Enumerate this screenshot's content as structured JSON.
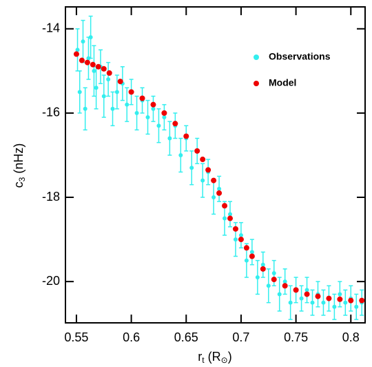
{
  "chart_data": {
    "type": "scatter",
    "xlabel": [
      "r",
      "t",
      " (R",
      "⊙",
      ")"
    ],
    "ylabel": [
      "c",
      "3",
      " (nHz)"
    ],
    "xlim": [
      0.54,
      0.813
    ],
    "ylim": [
      -20.98,
      -13.48
    ],
    "xticks": [
      0.55,
      0.6,
      0.65,
      0.7,
      0.75,
      0.8
    ],
    "yticks": [
      -20,
      -18,
      -16,
      -14
    ],
    "series": [
      {
        "name": "Observations",
        "color": "#33eeee",
        "x": [
          0.551,
          0.553,
          0.556,
          0.558,
          0.561,
          0.563,
          0.566,
          0.568,
          0.572,
          0.575,
          0.579,
          0.583,
          0.587,
          0.592,
          0.596,
          0.6,
          0.605,
          0.61,
          0.615,
          0.62,
          0.625,
          0.63,
          0.635,
          0.64,
          0.645,
          0.65,
          0.655,
          0.66,
          0.665,
          0.67,
          0.675,
          0.68,
          0.685,
          0.69,
          0.695,
          0.7,
          0.705,
          0.71,
          0.715,
          0.72,
          0.725,
          0.73,
          0.735,
          0.74,
          0.745,
          0.75,
          0.755,
          0.76,
          0.765,
          0.77,
          0.775,
          0.78,
          0.785,
          0.79,
          0.795,
          0.8,
          0.805,
          0.81
        ],
        "values": [
          -14.5,
          -15.5,
          -14.3,
          -15.9,
          -14.7,
          -14.2,
          -15.0,
          -15.4,
          -14.9,
          -15.6,
          -15.2,
          -15.9,
          -15.5,
          -15.3,
          -15.8,
          -15.5,
          -16.0,
          -15.7,
          -16.1,
          -15.9,
          -16.3,
          -16.1,
          -16.6,
          -16.3,
          -17.0,
          -16.6,
          -17.3,
          -16.9,
          -17.6,
          -17.4,
          -18.0,
          -17.8,
          -18.5,
          -18.4,
          -19.0,
          -18.9,
          -19.5,
          -19.3,
          -19.9,
          -19.6,
          -20.1,
          -19.8,
          -20.3,
          -20.0,
          -20.5,
          -20.2,
          -20.4,
          -20.2,
          -20.5,
          -20.3,
          -20.5,
          -20.4,
          -20.6,
          -20.3,
          -20.5,
          -20.4,
          -20.6,
          -20.5
        ],
        "errors": [
          0.5,
          0.5,
          0.5,
          0.5,
          0.5,
          0.5,
          0.6,
          0.5,
          0.4,
          0.5,
          0.4,
          0.4,
          0.4,
          0.4,
          0.4,
          0.3,
          0.4,
          0.3,
          0.4,
          0.3,
          0.4,
          0.3,
          0.4,
          0.3,
          0.4,
          0.3,
          0.4,
          0.3,
          0.4,
          0.3,
          0.4,
          0.3,
          0.4,
          0.3,
          0.4,
          0.3,
          0.4,
          0.3,
          0.4,
          0.3,
          0.4,
          0.3,
          0.4,
          0.3,
          0.4,
          0.3,
          0.3,
          0.3,
          0.3,
          0.3,
          0.3,
          0.3,
          0.3,
          0.3,
          0.3,
          0.3,
          0.3,
          0.3
        ]
      },
      {
        "name": "Model",
        "color": "#ee0000",
        "x": [
          0.55,
          0.555,
          0.56,
          0.565,
          0.57,
          0.575,
          0.58,
          0.59,
          0.6,
          0.61,
          0.62,
          0.63,
          0.64,
          0.65,
          0.66,
          0.665,
          0.67,
          0.675,
          0.68,
          0.685,
          0.69,
          0.695,
          0.7,
          0.705,
          0.71,
          0.72,
          0.73,
          0.74,
          0.75,
          0.76,
          0.77,
          0.78,
          0.79,
          0.8,
          0.81
        ],
        "values": [
          -14.6,
          -14.75,
          -14.8,
          -14.85,
          -14.9,
          -14.95,
          -15.05,
          -15.25,
          -15.5,
          -15.65,
          -15.8,
          -16.0,
          -16.25,
          -16.55,
          -16.9,
          -17.1,
          -17.35,
          -17.6,
          -17.9,
          -18.2,
          -18.5,
          -18.75,
          -19.0,
          -19.2,
          -19.4,
          -19.7,
          -19.95,
          -20.1,
          -20.2,
          -20.3,
          -20.35,
          -20.4,
          -20.42,
          -20.45,
          -20.45
        ]
      }
    ]
  }
}
